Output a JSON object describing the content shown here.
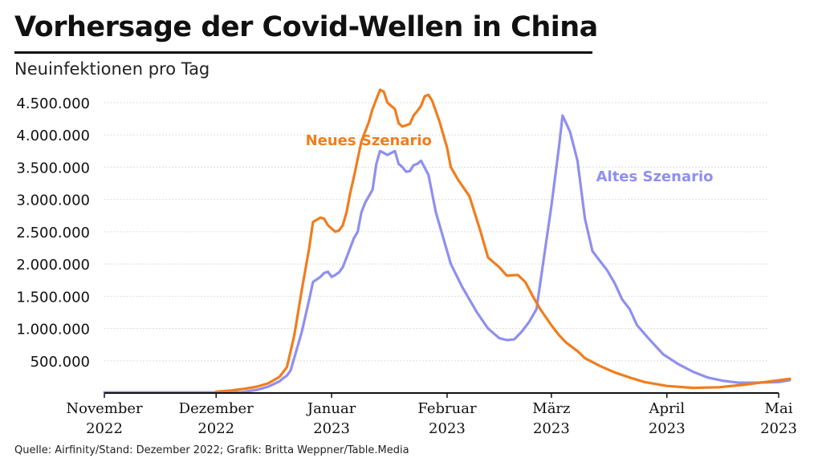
{
  "header": {
    "title": "Vorhersage der Covid-Wellen in China",
    "subtitle": "Neuinfektionen pro Tag"
  },
  "footer": {
    "source": "Quelle: Airfinity/Stand: Dezember 2022; Grafik: Britta Weppner/Table.Media"
  },
  "colors": {
    "neues": "#f07d1e",
    "altes": "#8f8ff0",
    "grid": "#dddddd",
    "axis": "#111111"
  },
  "chart_data": {
    "type": "line",
    "ylim": [
      0,
      4500000
    ],
    "yticks": [
      500000,
      1000000,
      1500000,
      2000000,
      2500000,
      3000000,
      3500000,
      4000000,
      4500000
    ],
    "ytick_labels": [
      "500.000",
      "1.000.000",
      "1.500.000",
      "2.000.000",
      "2.500.000",
      "3.000.000",
      "3.500.000",
      "4.000.000",
      "4.500.000"
    ],
    "xlim": [
      "2022-11-01",
      "2023-05-01"
    ],
    "xticks": [
      {
        "date": "2022-11-01",
        "line1": "November",
        "line2": "2022"
      },
      {
        "date": "2022-12-01",
        "line1": "Dezember",
        "line2": "2022"
      },
      {
        "date": "2023-01-01",
        "line1": "Januar",
        "line2": "2023"
      },
      {
        "date": "2023-02-01",
        "line1": "Februar",
        "line2": "2023"
      },
      {
        "date": "2023-03-01",
        "line1": "März",
        "line2": "2023"
      },
      {
        "date": "2023-04-01",
        "line1": "April",
        "line2": "2023"
      },
      {
        "date": "2023-05-01",
        "line1": "Mai",
        "line2": "2023"
      }
    ],
    "grid": true,
    "series": [
      {
        "name": "Neues Szenario",
        "key": "neues",
        "points": [
          [
            "2022-12-01",
            20000
          ],
          [
            "2022-12-05",
            40000
          ],
          [
            "2022-12-09",
            70000
          ],
          [
            "2022-12-12",
            100000
          ],
          [
            "2022-12-15",
            150000
          ],
          [
            "2022-12-18",
            250000
          ],
          [
            "2022-12-20",
            400000
          ],
          [
            "2022-12-22",
            900000
          ],
          [
            "2022-12-24",
            1600000
          ],
          [
            "2022-12-26",
            2250000
          ],
          [
            "2022-12-27",
            2650000
          ],
          [
            "2022-12-29",
            2720000
          ],
          [
            "2022-12-30",
            2700000
          ],
          [
            "2022-12-31",
            2600000
          ],
          [
            "2023-01-01",
            2550000
          ],
          [
            "2023-01-02",
            2500000
          ],
          [
            "2023-01-03",
            2520000
          ],
          [
            "2023-01-04",
            2600000
          ],
          [
            "2023-01-05",
            2800000
          ],
          [
            "2023-01-06",
            3100000
          ],
          [
            "2023-01-07",
            3350000
          ],
          [
            "2023-01-09",
            3900000
          ],
          [
            "2023-01-11",
            4200000
          ],
          [
            "2023-01-12",
            4400000
          ],
          [
            "2023-01-13",
            4550000
          ],
          [
            "2023-01-14",
            4700000
          ],
          [
            "2023-01-15",
            4670000
          ],
          [
            "2023-01-16",
            4500000
          ],
          [
            "2023-01-17",
            4450000
          ],
          [
            "2023-01-18",
            4400000
          ],
          [
            "2023-01-19",
            4180000
          ],
          [
            "2023-01-20",
            4130000
          ],
          [
            "2023-01-21",
            4150000
          ],
          [
            "2023-01-22",
            4170000
          ],
          [
            "2023-01-23",
            4300000
          ],
          [
            "2023-01-24",
            4370000
          ],
          [
            "2023-01-25",
            4450000
          ],
          [
            "2023-01-26",
            4600000
          ],
          [
            "2023-01-27",
            4620000
          ],
          [
            "2023-01-28",
            4530000
          ],
          [
            "2023-01-30",
            4200000
          ],
          [
            "2023-01-31",
            4000000
          ],
          [
            "2023-02-01",
            3800000
          ],
          [
            "2023-02-02",
            3500000
          ],
          [
            "2023-02-04",
            3300000
          ],
          [
            "2023-02-07",
            3050000
          ],
          [
            "2023-02-10",
            2500000
          ],
          [
            "2023-02-12",
            2100000
          ],
          [
            "2023-02-15",
            1950000
          ],
          [
            "2023-02-17",
            1820000
          ],
          [
            "2023-02-20",
            1830000
          ],
          [
            "2023-02-22",
            1720000
          ],
          [
            "2023-02-24",
            1500000
          ],
          [
            "2023-02-26",
            1300000
          ],
          [
            "2023-03-01",
            1050000
          ],
          [
            "2023-03-03",
            900000
          ],
          [
            "2023-03-05",
            780000
          ],
          [
            "2023-03-08",
            650000
          ],
          [
            "2023-03-10",
            540000
          ],
          [
            "2023-03-14",
            420000
          ],
          [
            "2023-03-18",
            320000
          ],
          [
            "2023-03-22",
            240000
          ],
          [
            "2023-03-26",
            170000
          ],
          [
            "2023-04-01",
            110000
          ],
          [
            "2023-04-08",
            80000
          ],
          [
            "2023-04-15",
            90000
          ],
          [
            "2023-04-22",
            130000
          ],
          [
            "2023-04-30",
            190000
          ],
          [
            "2023-05-04",
            220000
          ]
        ]
      },
      {
        "name": "Altes Szenario",
        "key": "altes",
        "points": [
          [
            "2022-11-01",
            10000
          ],
          [
            "2022-11-15",
            10000
          ],
          [
            "2022-12-01",
            10000
          ],
          [
            "2022-12-08",
            15000
          ],
          [
            "2022-12-12",
            50000
          ],
          [
            "2022-12-15",
            100000
          ],
          [
            "2022-12-18",
            180000
          ],
          [
            "2022-12-19",
            230000
          ],
          [
            "2022-12-20",
            270000
          ],
          [
            "2022-12-21",
            350000
          ],
          [
            "2022-12-22",
            550000
          ],
          [
            "2022-12-24",
            950000
          ],
          [
            "2022-12-26",
            1450000
          ],
          [
            "2022-12-27",
            1720000
          ],
          [
            "2022-12-29",
            1800000
          ],
          [
            "2022-12-30",
            1860000
          ],
          [
            "2022-12-31",
            1880000
          ],
          [
            "2023-01-01",
            1800000
          ],
          [
            "2023-01-02",
            1830000
          ],
          [
            "2023-01-03",
            1870000
          ],
          [
            "2023-01-04",
            1950000
          ],
          [
            "2023-01-05",
            2100000
          ],
          [
            "2023-01-06",
            2250000
          ],
          [
            "2023-01-07",
            2400000
          ],
          [
            "2023-01-08",
            2500000
          ],
          [
            "2023-01-09",
            2800000
          ],
          [
            "2023-01-10",
            2950000
          ],
          [
            "2023-01-12",
            3150000
          ],
          [
            "2023-01-13",
            3550000
          ],
          [
            "2023-01-14",
            3750000
          ],
          [
            "2023-01-15",
            3720000
          ],
          [
            "2023-01-16",
            3690000
          ],
          [
            "2023-01-17",
            3720000
          ],
          [
            "2023-01-18",
            3750000
          ],
          [
            "2023-01-19",
            3550000
          ],
          [
            "2023-01-20",
            3500000
          ],
          [
            "2023-01-21",
            3430000
          ],
          [
            "2023-01-22",
            3440000
          ],
          [
            "2023-01-23",
            3530000
          ],
          [
            "2023-01-24",
            3550000
          ],
          [
            "2023-01-25",
            3600000
          ],
          [
            "2023-01-27",
            3380000
          ],
          [
            "2023-01-29",
            2800000
          ],
          [
            "2023-01-31",
            2400000
          ],
          [
            "2023-02-02",
            2000000
          ],
          [
            "2023-02-05",
            1650000
          ],
          [
            "2023-02-09",
            1250000
          ],
          [
            "2023-02-12",
            1000000
          ],
          [
            "2023-02-15",
            850000
          ],
          [
            "2023-02-17",
            820000
          ],
          [
            "2023-02-19",
            830000
          ],
          [
            "2023-02-21",
            950000
          ],
          [
            "2023-02-23",
            1100000
          ],
          [
            "2023-02-25",
            1300000
          ],
          [
            "2023-02-27",
            2100000
          ],
          [
            "2023-03-01",
            2900000
          ],
          [
            "2023-03-03",
            3800000
          ],
          [
            "2023-03-04",
            4300000
          ],
          [
            "2023-03-06",
            4050000
          ],
          [
            "2023-03-08",
            3600000
          ],
          [
            "2023-03-10",
            2700000
          ],
          [
            "2023-03-12",
            2200000
          ],
          [
            "2023-03-14",
            2050000
          ],
          [
            "2023-03-16",
            1900000
          ],
          [
            "2023-03-18",
            1700000
          ],
          [
            "2023-03-20",
            1450000
          ],
          [
            "2023-03-22",
            1300000
          ],
          [
            "2023-03-24",
            1050000
          ],
          [
            "2023-03-27",
            850000
          ],
          [
            "2023-03-31",
            600000
          ],
          [
            "2023-04-04",
            450000
          ],
          [
            "2023-04-08",
            330000
          ],
          [
            "2023-04-12",
            240000
          ],
          [
            "2023-04-16",
            190000
          ],
          [
            "2023-04-20",
            160000
          ],
          [
            "2023-04-25",
            160000
          ],
          [
            "2023-05-01",
            170000
          ],
          [
            "2023-05-04",
            200000
          ]
        ]
      }
    ],
    "annotations": [
      {
        "text": "Neues Szenario",
        "series": "neues",
        "at": [
          "2022-12-25",
          3840000
        ]
      },
      {
        "text": "Altes Szenario",
        "series": "altes",
        "at": [
          "2023-03-13",
          3280000
        ]
      }
    ]
  }
}
